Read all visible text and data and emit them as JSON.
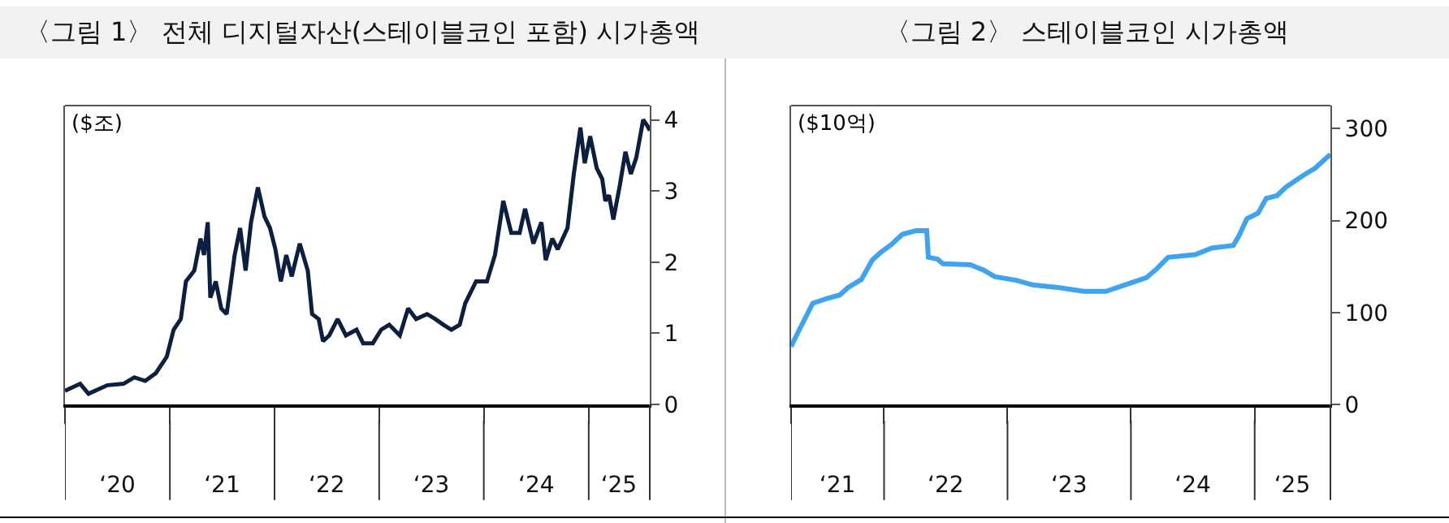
{
  "chart_data": [
    {
      "type": "line",
      "title": "〈그림 1〉 전체 디지털자산(스테이블코인 포함) 시가총액",
      "ylabel": "($조)",
      "x": [
        "2020-01-01",
        "2020-02-23",
        "2020-03-23",
        "2020-05-28",
        "2020-07-23",
        "2020-08-30",
        "2020-10-07",
        "2020-11-13",
        "2020-12-21",
        "2021-01-14",
        "2021-02-08",
        "2021-02-26",
        "2021-03-27",
        "2021-04-18",
        "2021-04-30",
        "2021-05-13",
        "2021-05-22",
        "2021-06-10",
        "2021-06-29",
        "2021-07-18",
        "2021-08-15",
        "2021-09-03",
        "2021-09-22",
        "2021-10-11",
        "2021-11-04",
        "2021-11-27",
        "2021-12-16",
        "2022-01-04",
        "2022-01-23",
        "2022-02-11",
        "2022-03-02",
        "2022-03-30",
        "2022-04-27",
        "2022-05-12",
        "2022-06-04",
        "2022-06-19",
        "2022-07-11",
        "2022-08-09",
        "2022-09-07",
        "2022-10-14",
        "2022-11-06",
        "2022-12-10",
        "2023-01-08",
        "2023-02-05",
        "2023-03-14",
        "2023-04-12",
        "2023-05-10",
        "2023-06-17",
        "2023-07-16",
        "2023-08-13",
        "2023-09-10",
        "2023-10-09",
        "2023-10-28",
        "2023-12-05",
        "2024-01-12",
        "2024-02-09",
        "2024-03-09",
        "2024-04-06",
        "2024-05-05",
        "2024-05-24",
        "2024-06-22",
        "2024-07-20",
        "2024-08-04",
        "2024-08-27",
        "2024-09-15",
        "2024-10-19",
        "2024-11-10",
        "2024-12-03",
        "2024-12-18",
        "2025-01-06",
        "2025-01-29",
        "2025-02-17",
        "2025-02-28",
        "2025-03-13",
        "2025-03-28",
        "2025-04-20",
        "2025-05-09",
        "2025-05-28",
        "2025-06-16",
        "2025-07-10",
        "2025-07-24",
        "2025-08-02"
      ],
      "series": [
        {
          "color": "#0d1f40",
          "values": [
            0.19,
            0.29,
            0.15,
            0.27,
            0.29,
            0.38,
            0.33,
            0.44,
            0.67,
            1.05,
            1.2,
            1.73,
            1.88,
            2.33,
            2.1,
            2.56,
            1.5,
            1.73,
            1.35,
            1.27,
            2.1,
            2.48,
            1.88,
            2.56,
            3.05,
            2.64,
            2.48,
            2.18,
            1.73,
            2.1,
            1.8,
            2.26,
            1.88,
            1.27,
            1.2,
            0.89,
            0.97,
            1.2,
            0.97,
            1.05,
            0.86,
            0.86,
            1.05,
            1.12,
            0.97,
            1.35,
            1.2,
            1.27,
            1.2,
            1.12,
            1.05,
            1.12,
            1.42,
            1.73,
            1.73,
            2.1,
            2.86,
            2.41,
            2.41,
            2.75,
            2.26,
            2.56,
            2.03,
            2.33,
            2.18,
            2.48,
            3.24,
            3.89,
            3.39,
            3.77,
            3.32,
            3.17,
            2.86,
            2.94,
            2.6,
            3.09,
            3.55,
            3.24,
            3.47,
            4.0,
            3.92,
            3.85
          ]
        }
      ],
      "xlim": [
        "2020-01-01",
        "2025-08-02"
      ],
      "xticks": [
        {
          "value": "2020-01-01",
          "label": null
        },
        {
          "value": "2020-07-02",
          "label": "‘20"
        },
        {
          "value": "2021-01-01",
          "label": null
        },
        {
          "value": "2021-07-02",
          "label": "‘21"
        },
        {
          "value": "2022-01-01",
          "label": null
        },
        {
          "value": "2022-07-02",
          "label": "‘22"
        },
        {
          "value": "2023-01-01",
          "label": null
        },
        {
          "value": "2023-07-02",
          "label": "‘23"
        },
        {
          "value": "2024-01-01",
          "label": null
        },
        {
          "value": "2024-07-02",
          "label": "‘24"
        },
        {
          "value": "2025-01-01",
          "label": null
        },
        {
          "value": "2025-04-16",
          "label": "‘25"
        }
      ],
      "ylim": [
        0,
        4.2
      ],
      "yticks": [
        0,
        1,
        2,
        3,
        4
      ]
    },
    {
      "type": "line",
      "title": "〈그림 2〉 스테이블코인 시가총액",
      "ylabel": "($10억)",
      "x": [
        "2021-04-01",
        "2021-04-25",
        "2021-06-04",
        "2021-07-14",
        "2021-08-23",
        "2021-09-16",
        "2021-10-26",
        "2021-11-27",
        "2021-12-21",
        "2022-01-23",
        "2022-02-24",
        "2022-04-05",
        "2022-05-07",
        "2022-05-12",
        "2022-06-08",
        "2022-06-24",
        "2022-09-13",
        "2022-10-23",
        "2022-11-24",
        "2023-01-27",
        "2023-03-16",
        "2023-06-04",
        "2023-08-15",
        "2023-10-19",
        "2023-12-14",
        "2024-02-16",
        "2024-03-19",
        "2024-04-20",
        "2024-07-09",
        "2024-08-27",
        "2024-10-30",
        "2024-11-15",
        "2024-12-09",
        "2025-01-11",
        "2025-02-04",
        "2025-03-08",
        "2025-04-02",
        "2025-04-26",
        "2025-05-28",
        "2025-06-29",
        "2025-08-13"
      ],
      "series": [
        {
          "color": "#3fa4f0",
          "values": [
            63,
            81,
            110,
            115,
            119,
            127,
            136,
            157,
            165,
            174,
            185,
            189,
            189,
            160,
            158,
            153,
            152,
            146,
            139,
            135,
            130,
            127,
            123,
            123,
            130,
            138,
            148,
            160,
            163,
            170,
            173,
            183,
            202,
            208,
            224,
            227,
            236,
            242,
            250,
            257,
            272
          ]
        }
      ],
      "xlim": [
        "2021-04-01",
        "2025-08-13"
      ],
      "xticks": [
        {
          "value": "2021-04-01",
          "label": null
        },
        {
          "value": "2021-08-16",
          "label": "‘21"
        },
        {
          "value": "2022-01-01",
          "label": null
        },
        {
          "value": "2022-07-02",
          "label": "‘22"
        },
        {
          "value": "2023-01-01",
          "label": null
        },
        {
          "value": "2023-07-02",
          "label": "‘23"
        },
        {
          "value": "2024-01-01",
          "label": null
        },
        {
          "value": "2024-07-02",
          "label": "‘24"
        },
        {
          "value": "2025-01-01",
          "label": null
        },
        {
          "value": "2025-04-22",
          "label": "‘25"
        }
      ],
      "ylim": [
        0,
        325
      ],
      "yticks": [
        0,
        100,
        200,
        300
      ]
    }
  ]
}
